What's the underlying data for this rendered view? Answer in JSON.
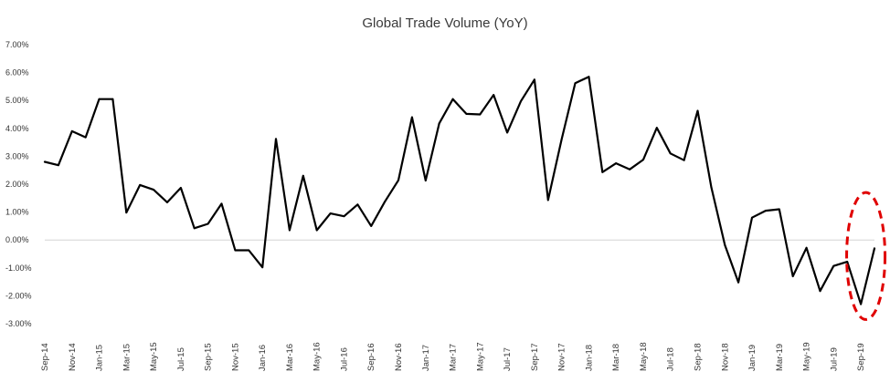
{
  "chart_data": {
    "type": "line",
    "title": "Global Trade Volume (YoY)",
    "xlabel": "",
    "ylabel": "",
    "ylim": [
      -3.0,
      7.0
    ],
    "y_ticks": [
      "7.00%",
      "6.00%",
      "5.00%",
      "4.00%",
      "3.00%",
      "2.00%",
      "1.00%",
      "0.00%",
      "-1.00%",
      "-2.00%",
      "-3.00%"
    ],
    "y_tick_values": [
      7,
      6,
      5,
      4,
      3,
      2,
      1,
      0,
      -1,
      -2,
      -3
    ],
    "x_ticks": [
      "Sep-14",
      "Nov-14",
      "Jan-15",
      "Mar-15",
      "May-15",
      "Jul-15",
      "Sep-15",
      "Nov-15",
      "Jan-16",
      "Mar-16",
      "May-16",
      "Jul-16",
      "Sep-16",
      "Nov-16",
      "Jan-17",
      "Mar-17",
      "May-17",
      "Jul-17",
      "Sep-17",
      "Nov-17",
      "Jan-18",
      "Mar-18",
      "May-18",
      "Jul-18",
      "Sep-18",
      "Nov-18",
      "Jan-19",
      "Mar-19",
      "May-19",
      "Jul-19",
      "Sep-19"
    ],
    "series": [
      {
        "name": "Global Trade Volume (YoY)",
        "color": "#000000",
        "values": [
          2.8,
          2.68,
          3.9,
          3.68,
          5.05,
          5.05,
          0.98,
          1.97,
          1.8,
          1.35,
          1.87,
          0.42,
          0.58,
          1.3,
          -0.37,
          -0.37,
          -0.98,
          3.62,
          0.35,
          2.3,
          0.35,
          0.95,
          0.85,
          1.27,
          0.5,
          1.37,
          2.14,
          4.4,
          2.13,
          4.18,
          5.05,
          4.52,
          4.5,
          5.2,
          3.85,
          4.97,
          5.75,
          1.43,
          3.6,
          5.62,
          5.85,
          2.43,
          2.75,
          2.53,
          2.88,
          4.02,
          3.1,
          2.86,
          4.63,
          1.9,
          -0.18,
          -1.52,
          0.8,
          1.05,
          1.1,
          -1.3,
          -0.28,
          -1.83,
          -0.93,
          -0.78,
          -2.3,
          -0.3
        ]
      }
    ],
    "annotation": {
      "type": "dashed-ellipse",
      "color": "#e00000",
      "note": "highlights most recent data points"
    }
  }
}
